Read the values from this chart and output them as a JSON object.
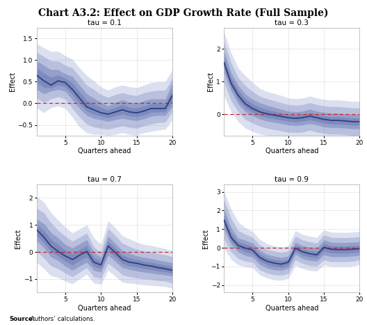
{
  "title": "Chart A3.2: Effect on GDP Growth Rate (Full Sample)",
  "source_bold": "Source:",
  "source_rest": " Authors’ calculations.",
  "subplots": [
    {
      "tau_label": "tau = 0.1",
      "ylim": [
        -0.75,
        1.75
      ],
      "yticks": [
        -0.5,
        0.0,
        0.5,
        1.0,
        1.5
      ],
      "median": [
        0.65,
        0.52,
        0.42,
        0.52,
        0.48,
        0.32,
        0.12,
        -0.08,
        -0.15,
        -0.22,
        -0.25,
        -0.2,
        -0.15,
        -0.2,
        -0.22,
        -0.18,
        -0.12,
        -0.12,
        -0.12,
        0.18
      ],
      "band1_lo": [
        0.32,
        0.22,
        0.28,
        0.32,
        0.28,
        0.08,
        -0.12,
        -0.28,
        -0.35,
        -0.38,
        -0.42,
        -0.38,
        -0.35,
        -0.38,
        -0.4,
        -0.36,
        -0.3,
        -0.28,
        -0.28,
        -0.08
      ],
      "band1_hi": [
        0.98,
        0.88,
        0.78,
        0.78,
        0.68,
        0.62,
        0.42,
        0.22,
        0.12,
        0.02,
        -0.06,
        0.02,
        0.08,
        0.02,
        0.0,
        0.06,
        0.1,
        0.1,
        0.1,
        0.48
      ],
      "band2_lo": [
        0.12,
        0.02,
        0.1,
        0.15,
        0.1,
        -0.12,
        -0.32,
        -0.48,
        -0.55,
        -0.58,
        -0.6,
        -0.56,
        -0.52,
        -0.56,
        -0.58,
        -0.52,
        -0.48,
        -0.45,
        -0.44,
        -0.18
      ],
      "band2_hi": [
        1.18,
        1.08,
        0.98,
        0.98,
        0.88,
        0.82,
        0.62,
        0.42,
        0.32,
        0.2,
        0.14,
        0.2,
        0.25,
        0.2,
        0.18,
        0.24,
        0.28,
        0.3,
        0.3,
        0.58
      ],
      "band3_lo": [
        -0.1,
        -0.22,
        -0.1,
        -0.06,
        -0.12,
        -0.32,
        -0.55,
        -0.68,
        -0.72,
        -0.72,
        -0.74,
        -0.72,
        -0.68,
        -0.72,
        -0.74,
        -0.68,
        -0.65,
        -0.62,
        -0.6,
        -0.38
      ],
      "band3_hi": [
        1.38,
        1.28,
        1.2,
        1.2,
        1.1,
        1.02,
        0.82,
        0.64,
        0.52,
        0.38,
        0.3,
        0.38,
        0.42,
        0.38,
        0.36,
        0.42,
        0.48,
        0.5,
        0.5,
        0.78
      ]
    },
    {
      "tau_label": "tau = 0.3",
      "ylim": [
        -0.65,
        2.65
      ],
      "yticks": [
        0.0,
        1.0,
        2.0
      ],
      "median": [
        1.58,
        0.95,
        0.58,
        0.32,
        0.18,
        0.08,
        0.02,
        -0.02,
        -0.06,
        -0.1,
        -0.12,
        -0.1,
        -0.05,
        -0.1,
        -0.15,
        -0.18,
        -0.18,
        -0.2,
        -0.22,
        -0.22
      ],
      "band1_lo": [
        1.28,
        0.72,
        0.32,
        0.08,
        -0.04,
        -0.14,
        -0.2,
        -0.24,
        -0.28,
        -0.32,
        -0.34,
        -0.32,
        -0.28,
        -0.32,
        -0.38,
        -0.4,
        -0.4,
        -0.42,
        -0.44,
        -0.44
      ],
      "band1_hi": [
        1.92,
        1.28,
        0.88,
        0.62,
        0.46,
        0.36,
        0.28,
        0.22,
        0.16,
        0.1,
        0.08,
        0.1,
        0.16,
        0.1,
        0.06,
        0.04,
        0.04,
        0.02,
        0.0,
        0.0
      ],
      "band2_lo": [
        0.98,
        0.42,
        0.08,
        -0.16,
        -0.26,
        -0.36,
        -0.42,
        -0.46,
        -0.5,
        -0.54,
        -0.55,
        -0.54,
        -0.48,
        -0.54,
        -0.58,
        -0.6,
        -0.6,
        -0.62,
        -0.64,
        -0.64
      ],
      "band2_hi": [
        2.22,
        1.58,
        1.12,
        0.88,
        0.7,
        0.56,
        0.48,
        0.42,
        0.36,
        0.3,
        0.28,
        0.3,
        0.36,
        0.3,
        0.26,
        0.24,
        0.24,
        0.22,
        0.2,
        0.2
      ],
      "band3_lo": [
        0.58,
        0.08,
        -0.22,
        -0.42,
        -0.52,
        -0.6,
        -0.64,
        -0.68,
        -0.72,
        -0.74,
        -0.75,
        -0.74,
        -0.68,
        -0.74,
        -0.76,
        -0.78,
        -0.78,
        -0.8,
        -0.82,
        -0.82
      ],
      "band3_hi": [
        2.52,
        1.88,
        1.42,
        1.18,
        0.98,
        0.8,
        0.7,
        0.64,
        0.58,
        0.5,
        0.48,
        0.5,
        0.56,
        0.5,
        0.46,
        0.44,
        0.44,
        0.42,
        0.4,
        0.4
      ]
    },
    {
      "tau_label": "tau = 0.7",
      "ylim": [
        -1.5,
        2.5
      ],
      "yticks": [
        -1.0,
        0.0,
        1.0,
        2.0
      ],
      "median": [
        0.82,
        0.55,
        0.22,
        0.02,
        -0.15,
        -0.28,
        -0.12,
        0.02,
        -0.38,
        -0.48,
        0.22,
        -0.02,
        -0.28,
        -0.38,
        -0.42,
        -0.48,
        -0.52,
        -0.58,
        -0.62,
        -0.68
      ],
      "band1_lo": [
        0.42,
        0.15,
        -0.18,
        -0.32,
        -0.52,
        -0.68,
        -0.52,
        -0.38,
        -0.68,
        -0.75,
        -0.12,
        -0.35,
        -0.58,
        -0.65,
        -0.7,
        -0.75,
        -0.78,
        -0.82,
        -0.85,
        -0.9
      ],
      "band1_hi": [
        1.22,
        1.05,
        0.72,
        0.52,
        0.28,
        0.15,
        0.3,
        0.45,
        -0.02,
        -0.2,
        0.58,
        0.32,
        0.05,
        -0.05,
        -0.14,
        -0.2,
        -0.24,
        -0.3,
        -0.35,
        -0.4
      ],
      "band2_lo": [
        0.02,
        -0.22,
        -0.52,
        -0.62,
        -0.78,
        -0.92,
        -0.75,
        -0.58,
        -0.92,
        -0.98,
        -0.42,
        -0.62,
        -0.85,
        -0.92,
        -0.96,
        -1.0,
        -1.02,
        -1.06,
        -1.08,
        -1.15
      ],
      "band2_hi": [
        1.62,
        1.45,
        1.08,
        0.8,
        0.58,
        0.4,
        0.55,
        0.7,
        0.18,
        -0.02,
        0.88,
        0.6,
        0.32,
        0.2,
        0.1,
        0.04,
        0.0,
        -0.06,
        -0.1,
        -0.18
      ],
      "band3_lo": [
        -0.38,
        -0.62,
        -0.88,
        -0.95,
        -1.08,
        -1.18,
        -1.0,
        -0.82,
        -1.15,
        -1.2,
        -0.68,
        -0.9,
        -1.12,
        -1.16,
        -1.18,
        -1.22,
        -1.24,
        -1.26,
        -1.28,
        -1.35
      ],
      "band3_hi": [
        2.05,
        1.85,
        1.45,
        1.18,
        0.92,
        0.7,
        0.85,
        1.0,
        0.52,
        0.28,
        1.15,
        0.9,
        0.6,
        0.48,
        0.36,
        0.28,
        0.24,
        0.18,
        0.12,
        0.05
      ]
    },
    {
      "tau_label": "tau = 0.9",
      "ylim": [
        -2.4,
        3.4
      ],
      "yticks": [
        -2.0,
        -1.0,
        0.0,
        1.0,
        2.0,
        3.0
      ],
      "median": [
        1.48,
        0.55,
        0.12,
        -0.02,
        -0.12,
        -0.52,
        -0.72,
        -0.82,
        -0.88,
        -0.78,
        -0.02,
        -0.22,
        -0.32,
        -0.38,
        0.02,
        -0.08,
        -0.1,
        -0.1,
        -0.08,
        -0.05
      ],
      "band1_lo": [
        0.98,
        0.18,
        -0.22,
        -0.42,
        -0.5,
        -0.9,
        -1.08,
        -1.18,
        -1.22,
        -1.1,
        -0.35,
        -0.58,
        -0.68,
        -0.72,
        -0.38,
        -0.48,
        -0.48,
        -0.48,
        -0.45,
        -0.4
      ],
      "band1_hi": [
        2.08,
        1.08,
        0.52,
        0.4,
        0.26,
        -0.14,
        -0.35,
        -0.45,
        -0.52,
        -0.45,
        0.3,
        0.12,
        0.02,
        -0.02,
        0.42,
        0.3,
        0.28,
        0.28,
        0.3,
        0.32
      ],
      "band2_lo": [
        0.48,
        -0.22,
        -0.58,
        -0.72,
        -0.78,
        -1.18,
        -1.35,
        -1.45,
        -1.48,
        -1.38,
        -0.65,
        -0.85,
        -0.95,
        -0.98,
        -0.65,
        -0.75,
        -0.75,
        -0.75,
        -0.72,
        -0.65
      ],
      "band2_hi": [
        2.58,
        1.58,
        0.92,
        0.72,
        0.56,
        0.15,
        -0.08,
        -0.18,
        -0.25,
        -0.18,
        0.62,
        0.42,
        0.32,
        0.25,
        0.68,
        0.56,
        0.54,
        0.54,
        0.56,
        0.58
      ],
      "band3_lo": [
        -0.02,
        -0.62,
        -0.92,
        -1.02,
        -1.08,
        -1.45,
        -1.62,
        -1.72,
        -1.75,
        -1.65,
        -0.95,
        -1.12,
        -1.22,
        -1.25,
        -0.92,
        -1.0,
        -1.0,
        -1.0,
        -0.98,
        -0.9
      ],
      "band3_hi": [
        3.02,
        2.08,
        1.38,
        1.08,
        0.88,
        0.45,
        0.22,
        0.1,
        0.02,
        0.1,
        0.92,
        0.72,
        0.62,
        0.55,
        0.96,
        0.84,
        0.82,
        0.82,
        0.84,
        0.88
      ]
    }
  ],
  "line_color": "#2e3f7f",
  "band_color_dark": "#5a6aaa",
  "band_color_mid": "#7080bb",
  "band_color_light": "#8898cc",
  "ref_color": "#cc2222",
  "xlabel": "Quarters ahead",
  "ylabel": "Effect",
  "xticks": [
    5,
    10,
    15,
    20
  ],
  "background_color": "#ffffff",
  "title_fontsize": 10,
  "label_fontsize": 7,
  "tick_fontsize": 6.5,
  "subplot_title_fontsize": 7.5
}
